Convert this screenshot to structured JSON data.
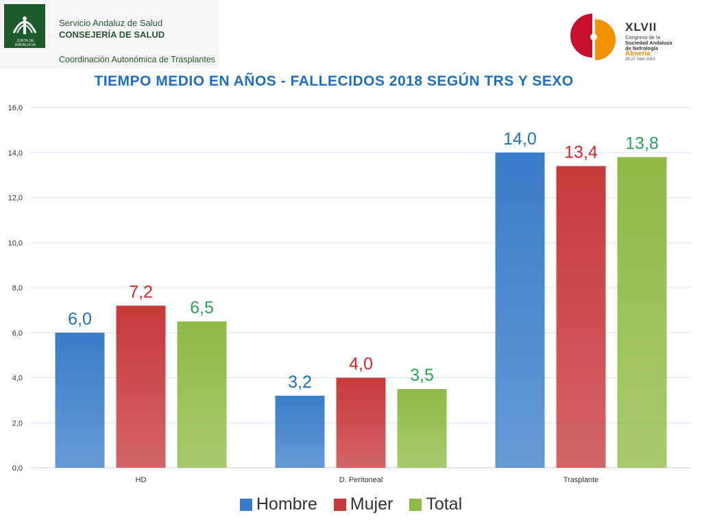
{
  "header": {
    "logo_text": "JUNTA DE ANDALUCIA",
    "line1": "Servicio Andaluz de Salud",
    "line2": "CONSEJERÍA DE SALUD",
    "line3": "Coordinación Autonómica de Trasplantes"
  },
  "congress": {
    "number": "XLVII",
    "line1": "Congreso de la",
    "line2": "Sociedad Andaluza",
    "line3": "de Nefrología",
    "city": "Almería",
    "dates": "25-27 Abril 2019"
  },
  "chart_data": {
    "type": "bar",
    "title": "TIEMPO MEDIO EN AÑOS - FALLECIDOS 2018 SEGÚN TRS Y SEXO",
    "categories": [
      "HD",
      "D. Peritoneal",
      "Trasplante"
    ],
    "series": [
      {
        "name": "Hombre",
        "values": [
          6.0,
          3.2,
          14.0
        ],
        "labels": [
          "6,0",
          "3,2",
          "14,0"
        ],
        "color": "#3a7dc9",
        "label_color": "#1f6fbf"
      },
      {
        "name": "Mujer",
        "values": [
          7.2,
          4.0,
          13.4
        ],
        "labels": [
          "7,2",
          "4,0",
          "13,4"
        ],
        "color": "#c83a3a",
        "label_color": "#d62728"
      },
      {
        "name": "Total",
        "values": [
          6.5,
          3.5,
          13.8
        ],
        "labels": [
          "6,5",
          "3,5",
          "13,8"
        ],
        "color": "#8fba45",
        "label_color": "#2ca05a"
      }
    ],
    "ylim": [
      0,
      16
    ],
    "yticks": [
      0,
      2,
      4,
      6,
      8,
      10,
      12,
      14,
      16
    ],
    "ytick_labels": [
      "0,0",
      "2,0",
      "4,0",
      "6,0",
      "8,0",
      "10,0",
      "12,0",
      "14,0",
      "16,0"
    ],
    "xlabel": "",
    "ylabel": "",
    "grid": true,
    "legend_position": "bottom"
  }
}
